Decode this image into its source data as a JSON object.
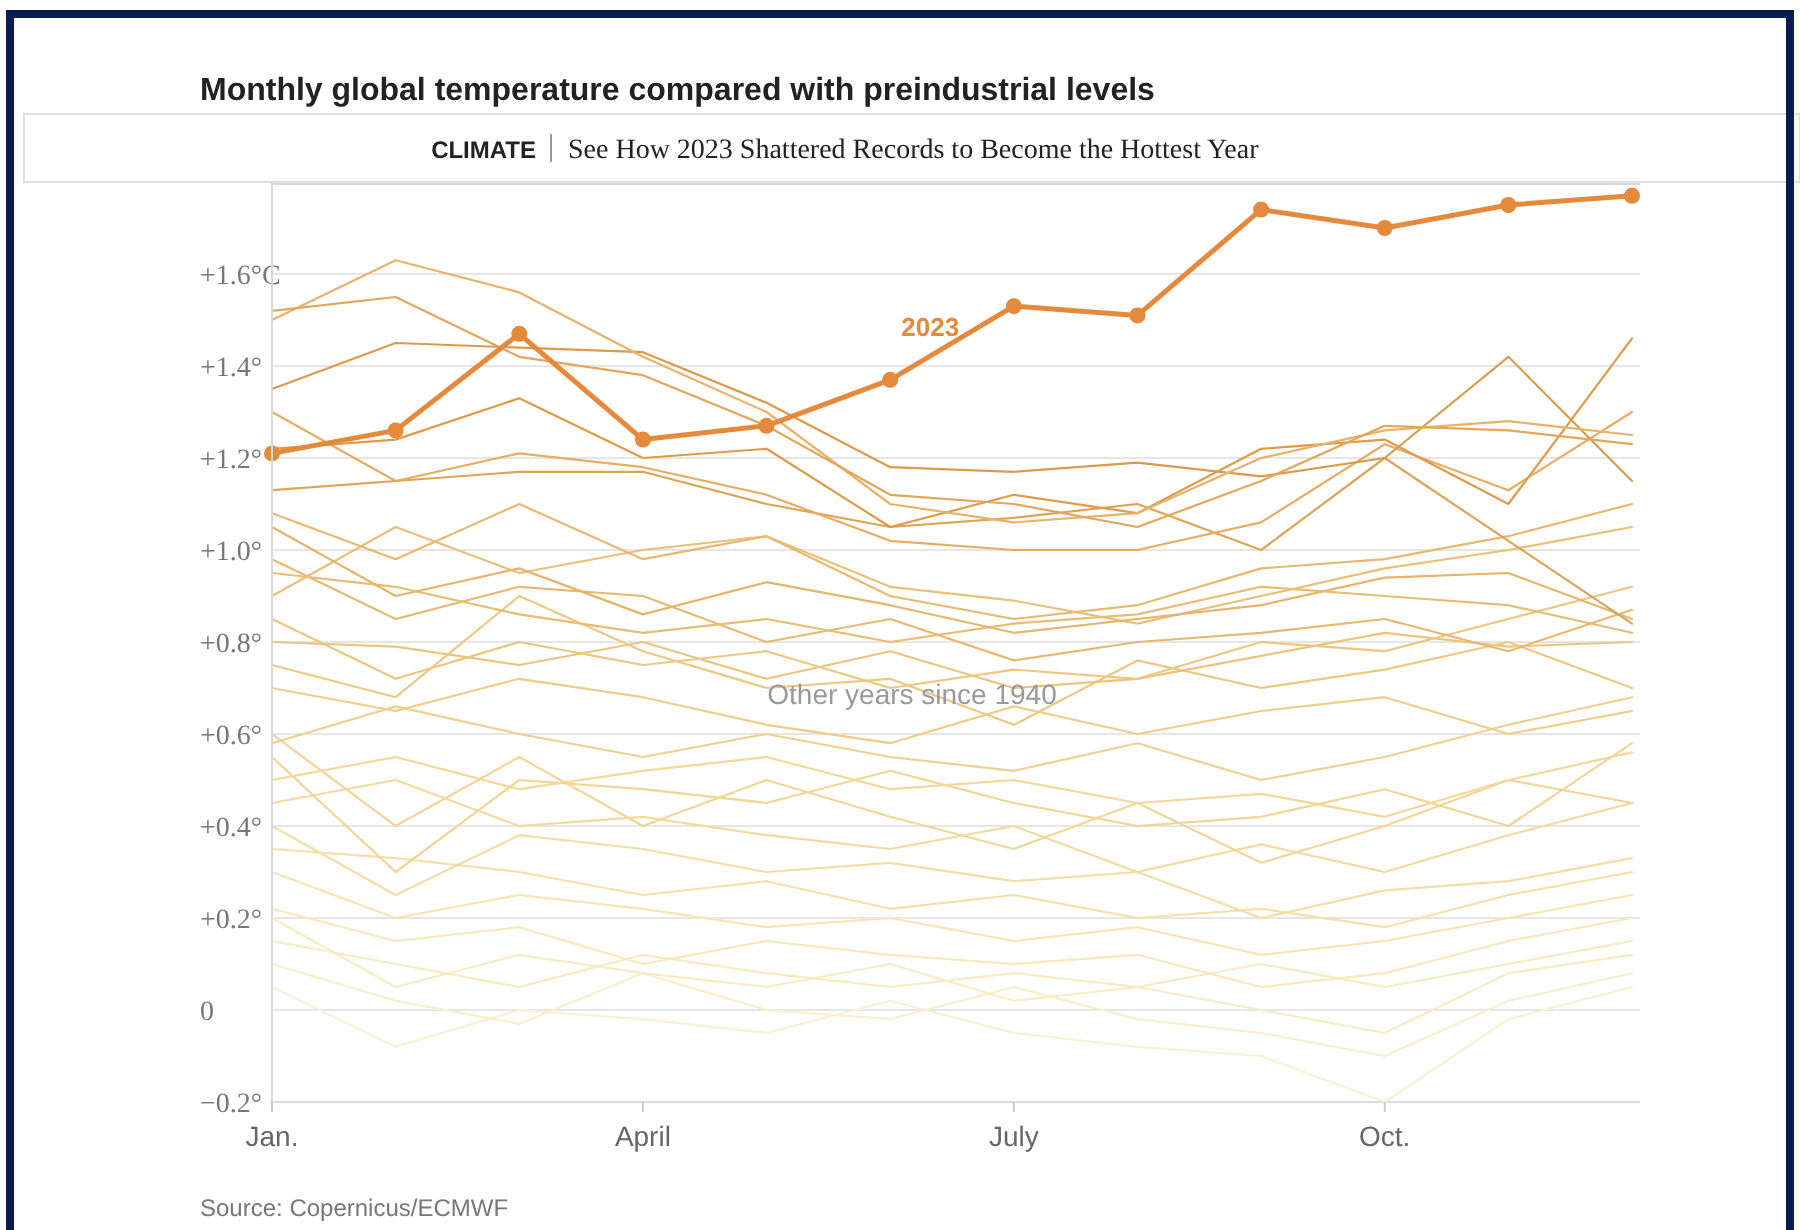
{
  "chart_data": {
    "type": "line",
    "title": "Monthly global temperature compared with preindustrial levels",
    "categories": [
      "Jan.",
      null,
      null,
      "April",
      null,
      null,
      "July",
      null,
      null,
      "Oct.",
      null,
      null
    ],
    "ylim": [
      -0.2,
      1.8
    ],
    "yticks": [
      {
        "value": -0.2,
        "label": "−0.2°"
      },
      0,
      {
        "value": 0.2,
        "label": "+0.2°"
      },
      {
        "value": 0.4,
        "label": "+0.4°"
      },
      {
        "value": 0.6,
        "label": "+0.6°"
      },
      {
        "value": 0.8,
        "label": "+0.8°"
      },
      {
        "value": 1.0,
        "label": "+1.0°"
      },
      {
        "value": 1.2,
        "label": "+1.2°"
      },
      {
        "value": 1.4,
        "label": "+1.4°"
      },
      {
        "value": 1.6,
        "label": "+1.6°C"
      }
    ],
    "grid": "y",
    "marker": "none",
    "series": [
      {
        "color": "#fbf0d2",
        "values": [
          0.05,
          -0.08,
          0.0,
          -0.02,
          -0.05,
          0.02,
          -0.05,
          -0.08,
          -0.1,
          -0.2,
          -0.02,
          0.05
        ]
      },
      {
        "color": "#faeecb",
        "values": [
          0.1,
          0.02,
          -0.03,
          0.08,
          0.0,
          -0.02,
          0.05,
          -0.02,
          -0.05,
          -0.1,
          0.02,
          0.08
        ]
      },
      {
        "color": "#f9ecc4",
        "values": [
          0.2,
          0.05,
          0.12,
          0.08,
          0.05,
          0.1,
          0.02,
          0.05,
          0.0,
          -0.05,
          0.08,
          0.12
        ]
      },
      {
        "color": "#f9eac0",
        "values": [
          0.15,
          0.1,
          0.05,
          0.12,
          0.08,
          0.05,
          0.08,
          0.05,
          0.1,
          0.05,
          0.1,
          0.15
        ]
      },
      {
        "color": "#f8e8ba",
        "values": [
          0.22,
          0.15,
          0.18,
          0.1,
          0.15,
          0.12,
          0.1,
          0.12,
          0.05,
          0.08,
          0.15,
          0.2
        ]
      },
      {
        "color": "#f7e4b2",
        "values": [
          0.3,
          0.2,
          0.25,
          0.22,
          0.18,
          0.2,
          0.15,
          0.18,
          0.12,
          0.15,
          0.2,
          0.25
        ]
      },
      {
        "color": "#f6e0aa",
        "values": [
          0.35,
          0.33,
          0.3,
          0.25,
          0.28,
          0.22,
          0.25,
          0.2,
          0.22,
          0.18,
          0.25,
          0.3
        ]
      },
      {
        "color": "#f5dea6",
        "values": [
          0.4,
          0.25,
          0.38,
          0.35,
          0.3,
          0.32,
          0.28,
          0.3,
          0.2,
          0.26,
          0.28,
          0.33
        ]
      },
      {
        "color": "#f4da9e",
        "values": [
          0.45,
          0.5,
          0.4,
          0.42,
          0.38,
          0.35,
          0.4,
          0.3,
          0.36,
          0.3,
          0.38,
          0.45
        ]
      },
      {
        "color": "#f2d698",
        "values": [
          0.6,
          0.4,
          0.55,
          0.4,
          0.5,
          0.42,
          0.35,
          0.45,
          0.32,
          0.4,
          0.5,
          0.45
        ]
      },
      {
        "color": "#f2d494",
        "values": [
          0.55,
          0.3,
          0.5,
          0.48,
          0.45,
          0.52,
          0.45,
          0.4,
          0.42,
          0.48,
          0.4,
          0.58
        ]
      },
      {
        "color": "#f3d898",
        "values": [
          0.5,
          0.55,
          0.48,
          0.52,
          0.55,
          0.48,
          0.5,
          0.45,
          0.47,
          0.42,
          0.5,
          0.56
        ]
      },
      {
        "color": "#f0d090",
        "values": [
          0.58,
          0.66,
          0.6,
          0.55,
          0.6,
          0.55,
          0.52,
          0.58,
          0.5,
          0.55,
          0.62,
          0.68
        ]
      },
      {
        "color": "#f0cc88",
        "values": [
          0.7,
          0.65,
          0.72,
          0.68,
          0.62,
          0.58,
          0.66,
          0.6,
          0.65,
          0.68,
          0.6,
          0.65
        ]
      },
      {
        "color": "#eec882",
        "values": [
          0.75,
          0.68,
          0.9,
          0.78,
          0.7,
          0.72,
          0.62,
          0.76,
          0.7,
          0.74,
          0.8,
          0.7
        ]
      },
      {
        "color": "#ecc47e",
        "values": [
          0.8,
          0.79,
          0.75,
          0.8,
          0.72,
          0.78,
          0.7,
          0.72,
          0.77,
          0.82,
          0.79,
          0.8
        ]
      },
      {
        "color": "#edc680",
        "values": [
          0.85,
          0.72,
          0.8,
          0.75,
          0.78,
          0.7,
          0.74,
          0.72,
          0.8,
          0.78,
          0.85,
          0.92
        ]
      },
      {
        "color": "#e8b870",
        "values": [
          0.98,
          0.85,
          0.92,
          0.9,
          0.8,
          0.85,
          0.76,
          0.8,
          0.82,
          0.85,
          0.78,
          0.87
        ]
      },
      {
        "color": "#e9bc74",
        "values": [
          0.95,
          0.92,
          0.86,
          0.82,
          0.85,
          0.8,
          0.84,
          0.86,
          0.92,
          0.9,
          0.88,
          0.82
        ]
      },
      {
        "color": "#ebbf78",
        "values": [
          0.9,
          1.05,
          0.95,
          1.0,
          1.03,
          0.92,
          0.89,
          0.84,
          0.9,
          0.96,
          1.0,
          1.05
        ]
      },
      {
        "color": "#e6b46a",
        "values": [
          1.05,
          0.9,
          0.96,
          0.86,
          0.93,
          0.88,
          0.82,
          0.85,
          0.88,
          0.94,
          0.95,
          0.85
        ]
      },
      {
        "color": "#e8b870",
        "values": [
          1.08,
          0.98,
          1.1,
          0.98,
          1.03,
          0.9,
          0.85,
          0.88,
          0.96,
          0.98,
          1.03,
          1.1
        ]
      },
      {
        "color": "#dfa356",
        "values": [
          1.13,
          1.15,
          1.17,
          1.17,
          1.1,
          1.05,
          1.07,
          1.1,
          1.0,
          1.2,
          1.02,
          0.84
        ]
      },
      {
        "color": "#e6ad62",
        "values": [
          1.3,
          1.15,
          1.21,
          1.18,
          1.12,
          1.02,
          1.0,
          1.0,
          1.06,
          1.23,
          1.13,
          1.3
        ]
      },
      {
        "color": "#e09a48",
        "values": [
          1.22,
          1.24,
          1.33,
          1.2,
          1.22,
          1.05,
          1.12,
          1.08,
          1.22,
          1.24,
          1.1,
          1.46
        ]
      },
      {
        "color": "#dd9a4a",
        "values": [
          1.35,
          1.45,
          1.44,
          1.43,
          1.32,
          1.18,
          1.17,
          1.19,
          1.16,
          1.2,
          1.42,
          1.15
        ]
      },
      {
        "color": "#e8b26a",
        "values": [
          1.5,
          1.63,
          1.56,
          1.42,
          1.3,
          1.1,
          1.06,
          1.08,
          1.2,
          1.26,
          1.28,
          1.25
        ]
      },
      {
        "color": "#e3a65a",
        "values": [
          1.52,
          1.55,
          1.42,
          1.38,
          1.27,
          1.12,
          1.1,
          1.05,
          1.15,
          1.27,
          1.26,
          1.23
        ]
      },
      {
        "name": "2023",
        "color": "#e5893a",
        "marker": "circle",
        "values": [
          1.21,
          1.26,
          1.47,
          1.24,
          1.27,
          1.37,
          1.53,
          1.51,
          1.74,
          1.7,
          1.75,
          1.77
        ]
      }
    ],
    "annotations": [
      "Other years since 1940",
      "CLIMATE",
      "See How 2023 Shattered Records to Become the Hottest Year",
      "Source: Copernicus/ECMWF"
    ]
  }
}
